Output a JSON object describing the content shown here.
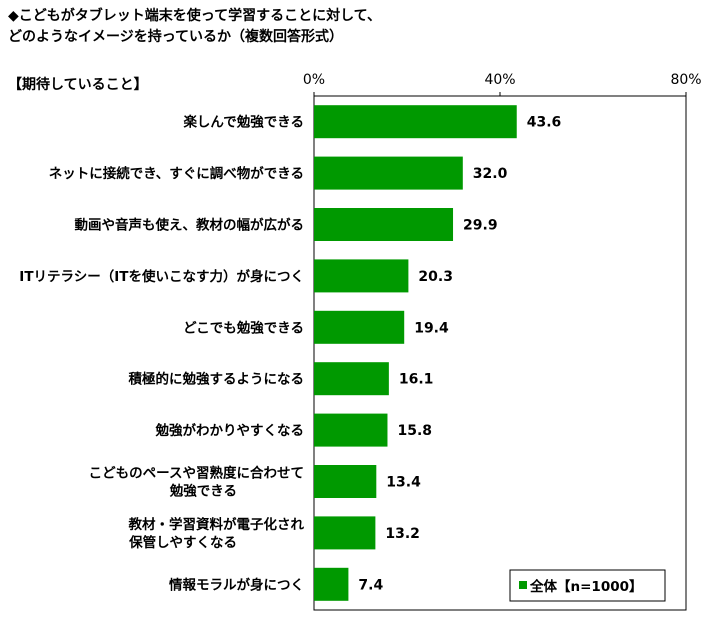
{
  "title": {
    "line1": "◆こどもがタブレット端末を使って学習することに対して、",
    "line2": "どのようなイメージを持っているか（複数回答形式）"
  },
  "section_label": "【期待していること】",
  "chart_data": {
    "type": "bar",
    "orientation": "horizontal",
    "categories": [
      [
        "楽しんで勉強できる"
      ],
      [
        "ネットに接続でき、すぐに調べ物ができる"
      ],
      [
        "動画や音声も使え、教材の幅が広がる"
      ],
      [
        "ITリテラシー（ITを使いこなす力）が身につく"
      ],
      [
        "どこでも勉強できる"
      ],
      [
        "積極的に勉強するようになる"
      ],
      [
        "勉強がわかりやすくなる"
      ],
      [
        "こどものペースや習熟度に合わせて",
        "勉強できる"
      ],
      [
        "教材・学習資料が電子化され",
        "保管しやすくなる"
      ],
      [
        "情報モラルが身につく"
      ]
    ],
    "series": [
      {
        "name": "全体【n=1000】",
        "values": [
          43.6,
          32.0,
          29.9,
          20.3,
          19.4,
          16.1,
          15.8,
          13.4,
          13.2,
          7.4
        ]
      }
    ],
    "value_labels": [
      "43.6",
      "32.0",
      "29.9",
      "20.3",
      "19.4",
      "16.1",
      "15.8",
      "13.4",
      "13.2",
      "7.4"
    ],
    "xlim": [
      0,
      80
    ],
    "ticks": [
      "0%",
      "40%",
      "80%"
    ],
    "tick_values": [
      0,
      40,
      80
    ],
    "bar_color": "#009900",
    "gridlines": false,
    "legend_position": "bottom-right"
  }
}
